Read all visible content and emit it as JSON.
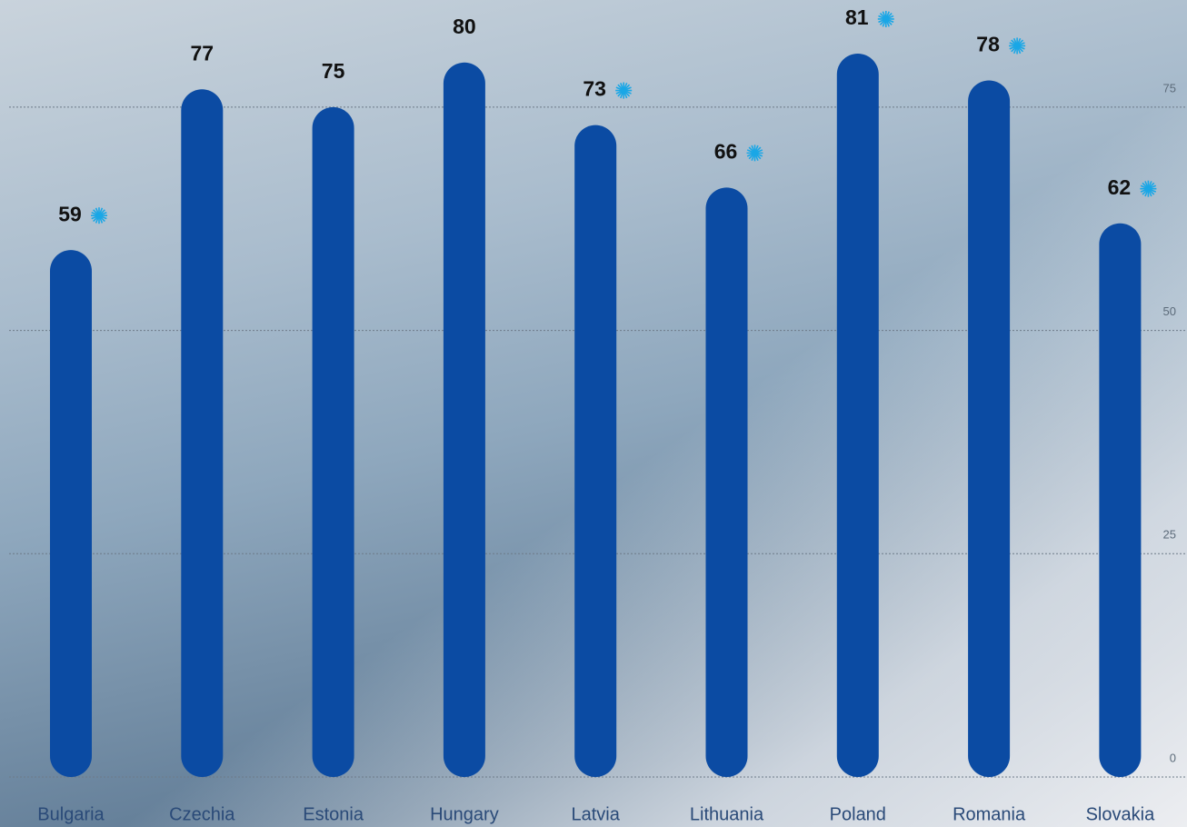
{
  "chart_data": {
    "type": "bar",
    "categories": [
      "Bulgaria",
      "Czechia",
      "Estonia",
      "Hungary",
      "Latvia",
      "Lithuania",
      "Poland",
      "Romania",
      "Slovakia"
    ],
    "values": [
      59,
      77,
      75,
      80,
      73,
      66,
      81,
      78,
      62
    ],
    "flagged": [
      true,
      false,
      false,
      false,
      true,
      true,
      true,
      true,
      true
    ],
    "color": "#0b4ba3",
    "flag_color": "#1aa7e6",
    "ylim": [
      0,
      87
    ],
    "yticks": [
      0,
      25,
      50,
      75
    ],
    "grid": true
  }
}
